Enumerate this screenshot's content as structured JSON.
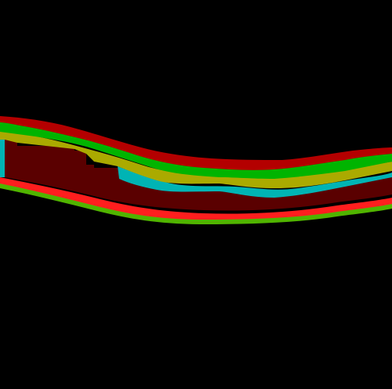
{
  "image": {
    "description_free": true,
    "background_color": "#000000"
  },
  "layers": [
    {
      "id": "layer-1",
      "color": "#B40000"
    },
    {
      "id": "layer-2",
      "color": "#00B400"
    },
    {
      "id": "layer-3",
      "color": "#AAAA00"
    },
    {
      "id": "layer-4",
      "color": "#00B4B4"
    },
    {
      "id": "layer-5",
      "color": "#5A0000"
    },
    {
      "id": "layer-6",
      "color": "#FF1E1E"
    },
    {
      "id": "layer-7",
      "color": "#50B400"
    }
  ]
}
